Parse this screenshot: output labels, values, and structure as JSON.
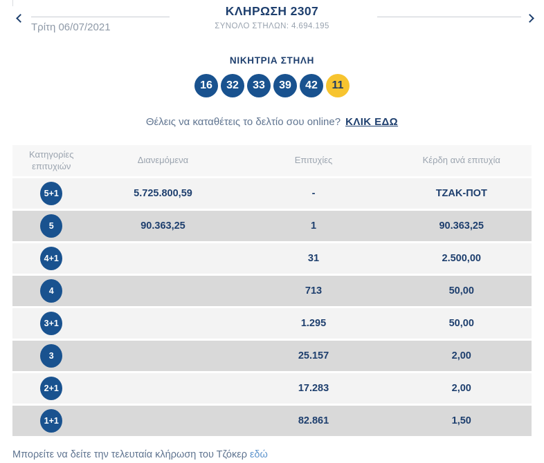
{
  "header": {
    "title": "ΚΛΗΡΩΣΗ 2307",
    "subtitle": "ΣΥΝΟΛΟ ΣΤΗΛΩΝ: 4.694.195",
    "date": "Τρίτη 06/07/2021",
    "icons": {
      "prev": "chevron-left-icon",
      "next": "chevron-right-icon"
    }
  },
  "winning": {
    "heading": "ΝΙΚΗΤΡΙΑ ΣΤΗΛΗ",
    "numbers": [
      "16",
      "32",
      "33",
      "39",
      "42"
    ],
    "joker": "11"
  },
  "cta": {
    "text": "Θέλεις να καταθέτεις το δελτίο σου online?",
    "link_label": "ΚΛΙΚ ΕΔΩ"
  },
  "table": {
    "headers": [
      "Κατηγορίες επιτυχιών",
      "Διανεμόμενα",
      "Επιτυχίες",
      "Κέρδη ανά επιτυχία"
    ],
    "rows": [
      {
        "category": "5+1",
        "distributed": "5.725.800,59",
        "wins": "-",
        "prize": "ΤΖΑΚ-ΠΟΤ"
      },
      {
        "category": "5",
        "distributed": "90.363,25",
        "wins": "1",
        "prize": "90.363,25"
      },
      {
        "category": "4+1",
        "distributed": "",
        "wins": "31",
        "prize": "2.500,00"
      },
      {
        "category": "4",
        "distributed": "",
        "wins": "713",
        "prize": "50,00"
      },
      {
        "category": "3+1",
        "distributed": "",
        "wins": "1.295",
        "prize": "50,00"
      },
      {
        "category": "3",
        "distributed": "",
        "wins": "25.157",
        "prize": "2,00"
      },
      {
        "category": "2+1",
        "distributed": "",
        "wins": "17.283",
        "prize": "2,00"
      },
      {
        "category": "1+1",
        "distributed": "",
        "wins": "82.861",
        "prize": "1,50"
      }
    ]
  },
  "footer": {
    "text": "Μπορείτε να δείτε την τελευταία κλήρωση του Τζόκερ",
    "link_label": "εδώ"
  },
  "colors": {
    "navy_text": "#1e3f6e",
    "ball_blue": "#19528f",
    "joker_yellow": "#f7c42f",
    "muted_gray": "#99a3af",
    "row_light": "#f3f3f3",
    "row_dark": "#d9d9d9",
    "link_blue": "#5d94cd"
  }
}
